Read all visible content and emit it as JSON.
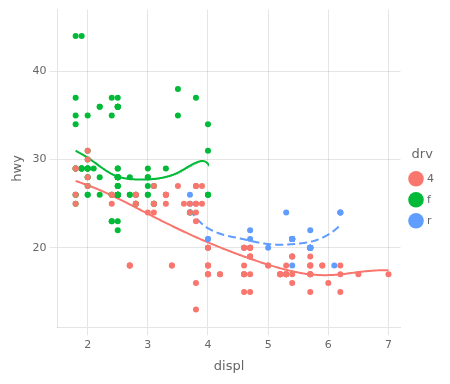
{
  "chart_data": {
    "type": "scatter",
    "xlabel": "displ",
    "ylabel": "hwy",
    "legend_title": "drv",
    "legend": "right",
    "grid": true,
    "xlim": [
      1.5,
      7.2
    ],
    "ylim": [
      11,
      47
    ],
    "xticks": [
      2,
      3,
      4,
      5,
      6,
      7
    ],
    "yticks": [
      20,
      30,
      40
    ],
    "series": [
      {
        "name": "4",
        "color": "#F8766D",
        "marker": "circle",
        "line_style": "solid",
        "x": [
          1.8,
          1.8,
          2.0,
          2.0,
          2.8,
          2.8,
          3.1,
          1.8,
          1.8,
          2.0,
          2.0,
          2.8,
          2.8,
          3.1,
          3.1,
          3.8,
          3.8,
          3.8,
          5.3,
          5.3,
          5.3,
          5.7,
          6.0,
          5.7,
          5.7,
          6.2,
          6.2,
          7.0,
          5.3,
          5.3,
          5.7,
          6.5,
          2.4,
          2.4,
          3.1,
          3.5,
          3.6,
          2.4,
          3.0,
          3.3,
          3.3,
          3.3,
          3.3,
          3.3,
          3.8,
          3.8,
          3.8,
          4.0,
          3.7,
          3.7,
          3.9,
          3.9,
          4.7,
          4.7,
          4.7,
          5.2,
          5.2,
          5.7,
          5.9,
          4.7,
          4.7,
          4.7,
          5.2,
          5.2,
          5.7,
          5.9,
          4.6,
          5.4,
          5.4,
          4.0,
          4.0,
          4.0,
          4.0,
          4.6,
          5.0,
          4.2,
          4.2,
          4.6,
          4.6,
          4.6,
          5.4,
          5.4,
          3.8,
          3.8,
          4.0,
          4.0,
          4.6,
          4.6,
          5.0,
          2.7,
          2.7,
          2.7,
          3.4,
          3.4,
          4.0,
          4.7,
          4.7,
          4.7,
          5.7,
          5.7,
          5.7,
          6.2
        ],
        "values": [
          29,
          29,
          31,
          30,
          26,
          26,
          27,
          26,
          25,
          28,
          27,
          25,
          25,
          25,
          25,
          24,
          25,
          23,
          17,
          17,
          17,
          17,
          16,
          17,
          15,
          15,
          17,
          17,
          18,
          17,
          19,
          17,
          26,
          25,
          24,
          27,
          25,
          26,
          24,
          26,
          26,
          26,
          26,
          25,
          27,
          25,
          27,
          20,
          25,
          24,
          27,
          25,
          20,
          15,
          20,
          17,
          17,
          17,
          18,
          17,
          19,
          19,
          17,
          17,
          17,
          18,
          17,
          19,
          19,
          20,
          17,
          18,
          18,
          18,
          18,
          17,
          17,
          17,
          15,
          17,
          17,
          16,
          16,
          13,
          17,
          17,
          20,
          20,
          18,
          18,
          18,
          18,
          18,
          18,
          18,
          20,
          19,
          20,
          18,
          18,
          18,
          18
        ]
      },
      {
        "name": "f",
        "color": "#00BA38",
        "marker": "circle",
        "line_style": "solid",
        "x": [
          1.8,
          1.8,
          2.0,
          2.0,
          2.8,
          2.8,
          3.1,
          1.8,
          1.8,
          2.0,
          2.0,
          2.8,
          2.8,
          3.1,
          3.1,
          1.8,
          1.8,
          1.8,
          2.0,
          2.4,
          2.4,
          2.5,
          2.5,
          3.3,
          2.0,
          2.0,
          2.0,
          2.0,
          2.7,
          2.7,
          2.7,
          3.0,
          3.7,
          4.0,
          4.0,
          4.0,
          4.0,
          4.0,
          2.2,
          2.2,
          2.5,
          2.5,
          3.0,
          3.0,
          3.0,
          3.0,
          3.0,
          3.5,
          3.5,
          3.8,
          2.5,
          2.5,
          2.5,
          2.5,
          2.5,
          2.5,
          2.2,
          2.2,
          2.5,
          2.5,
          2.5,
          2.5,
          2.5,
          2.5,
          2.5,
          2.5,
          2.5,
          2.5,
          2.5,
          1.9,
          2.0,
          2.0,
          2.0,
          1.8,
          1.9,
          1.9,
          1.9,
          1.9,
          1.9,
          2.1,
          2.4,
          2.4,
          2.5,
          2.5,
          1.8,
          1.8,
          2.0,
          2.4,
          2.4,
          2.5,
          2.5,
          2.5,
          2.5,
          2.5,
          2.5
        ],
        "values": [
          29,
          29,
          31,
          30,
          26,
          26,
          27,
          26,
          25,
          28,
          27,
          25,
          25,
          25,
          25,
          34,
          29,
          26,
          29,
          26,
          26,
          28,
          26,
          29,
          28,
          29,
          26,
          26,
          26,
          26,
          28,
          26,
          24,
          26,
          26,
          31,
          34,
          26,
          36,
          36,
          29,
          26,
          27,
          28,
          28,
          29,
          26,
          38,
          35,
          37,
          28,
          26,
          28,
          26,
          29,
          28,
          28,
          26,
          26,
          26,
          26,
          27,
          28,
          26,
          27,
          28,
          26,
          27,
          28,
          44,
          29,
          29,
          29,
          44,
          29,
          29,
          29,
          29,
          29,
          29,
          23,
          23,
          22,
          23,
          35,
          37,
          35,
          37,
          35,
          37,
          36,
          36,
          36,
          36,
          36
        ]
      },
      {
        "name": "r",
        "color": "#619CFF",
        "marker": "circle",
        "line_style": "dashed",
        "x": [
          3.7,
          3.7,
          3.7,
          4.7,
          4.7,
          5.4,
          5.4,
          5.4,
          5.4,
          5.4,
          5.4,
          5.4,
          5.4,
          5.4,
          4.0,
          4.0,
          4.0,
          5.0,
          6.1,
          5.4,
          5.4,
          4.6,
          5.7,
          5.7,
          5.7,
          5.7,
          5.7,
          5.7,
          5.7,
          5.7,
          5.7,
          5.7,
          5.7,
          5.3,
          6.2,
          6.2,
          5.7,
          6.2
        ],
        "values": [
          26,
          25,
          24,
          22,
          21,
          21,
          21,
          21,
          19,
          21,
          21,
          21,
          21,
          21,
          20,
          21,
          21,
          20,
          18,
          21,
          18,
          20,
          20,
          20,
          20,
          20,
          20,
          20,
          20,
          20,
          20,
          20,
          20,
          24,
          24,
          24,
          22,
          24
        ]
      }
    ]
  }
}
